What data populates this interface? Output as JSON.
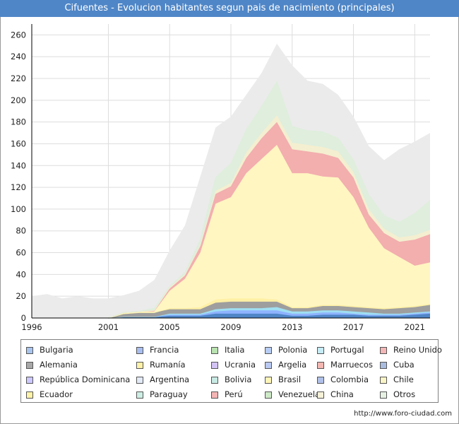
{
  "title": "Cifuentes - Evolucion habitantes segun pais de nacimiento (principales)",
  "footer": "http://www.foro-ciudad.com",
  "chart_data": {
    "type": "area",
    "stacked": true,
    "title": "Cifuentes - Evolucion habitantes segun pais de nacimiento (principales)",
    "xlim": [
      1996,
      2022
    ],
    "ylim": [
      0,
      270
    ],
    "x_ticks": [
      "1996",
      "2001",
      "2005",
      "2009",
      "2013",
      "2017",
      "2021"
    ],
    "y_ticks": [
      "0",
      "20",
      "40",
      "60",
      "80",
      "100",
      "120",
      "140",
      "160",
      "180",
      "200",
      "220",
      "240",
      "260"
    ],
    "grid": true,
    "legend_position": "bottom",
    "total_foreign": {
      "x": [
        1996,
        1997,
        1998,
        1999,
        2000,
        2001,
        2002,
        2003,
        2004,
        2005,
        2006,
        2007,
        2008,
        2009,
        2010,
        2011,
        2012,
        2013,
        2014,
        2015,
        2016,
        2017,
        2018,
        2019,
        2020,
        2021,
        2022
      ],
      "values": [
        20,
        22,
        18,
        20,
        18,
        18,
        21,
        25,
        35,
        62,
        85,
        130,
        175,
        185,
        205,
        225,
        252,
        232,
        218,
        215,
        205,
        185,
        158,
        145,
        155,
        162,
        170
      ],
      "color": "#ebebeb"
    },
    "x": [
      2001,
      2002,
      2003,
      2004,
      2005,
      2006,
      2007,
      2008,
      2009,
      2010,
      2011,
      2012,
      2013,
      2014,
      2015,
      2016,
      2017,
      2018,
      2019,
      2020,
      2021,
      2022
    ],
    "series": [
      {
        "name": "Bulgaria",
        "color": "#4f86c7",
        "values": [
          0,
          1,
          1,
          1,
          2,
          2,
          2,
          4,
          4,
          4,
          4,
          4,
          2,
          2,
          3,
          3,
          3,
          2,
          2,
          2,
          3,
          4
        ]
      },
      {
        "name": "Francia",
        "color": "#a9bef0",
        "values": [
          0,
          0,
          0,
          0,
          0,
          0,
          0,
          0,
          0,
          0,
          0,
          0,
          0,
          0,
          0,
          0,
          0,
          0,
          0,
          0,
          0,
          0
        ]
      },
      {
        "name": "Italia",
        "color": "#a6dba0",
        "values": [
          0,
          0,
          0,
          0,
          0,
          0,
          0,
          0,
          0,
          0,
          0,
          0,
          0,
          0,
          0,
          0,
          0,
          0,
          0,
          0,
          0,
          0
        ]
      },
      {
        "name": "Polonia",
        "color": "#8fb3ff",
        "values": [
          0,
          0,
          0,
          0,
          1,
          1,
          1,
          2,
          3,
          3,
          3,
          3,
          2,
          2,
          2,
          2,
          1,
          1,
          1,
          1,
          1,
          1
        ]
      },
      {
        "name": "Portugal",
        "color": "#9fdff2",
        "values": [
          0,
          0,
          0,
          0,
          1,
          1,
          1,
          2,
          2,
          2,
          2,
          3,
          2,
          2,
          2,
          2,
          2,
          2,
          1,
          1,
          1,
          1
        ]
      },
      {
        "name": "Reino Unido",
        "color": "#f2a5a5",
        "values": [
          0,
          0,
          0,
          0,
          0,
          0,
          0,
          0,
          0,
          0,
          0,
          0,
          0,
          0,
          0,
          0,
          0,
          0,
          0,
          0,
          0,
          0
        ]
      },
      {
        "name": "Alemania",
        "color": "#9e9e9e",
        "values": [
          0,
          3,
          4,
          4,
          4,
          4,
          4,
          6,
          6,
          6,
          6,
          5,
          3,
          3,
          4,
          4,
          4,
          4,
          4,
          5,
          5,
          6
        ]
      },
      {
        "name": "Rumanía",
        "color": "#fff0a5",
        "values": [
          0,
          0,
          0,
          0,
          1,
          1,
          2,
          3,
          3,
          3,
          3,
          2,
          1,
          1,
          1,
          1,
          1,
          1,
          1,
          1,
          1,
          1
        ]
      },
      {
        "name": "Ucrania",
        "color": "#c9b5f2",
        "values": [
          0,
          0,
          0,
          0,
          0,
          0,
          0,
          0,
          0,
          0,
          0,
          0,
          0,
          0,
          0,
          0,
          0,
          0,
          0,
          0,
          0,
          0
        ]
      },
      {
        "name": "Argelia",
        "color": "#b7c7f2",
        "values": [
          0,
          0,
          0,
          0,
          0,
          0,
          0,
          0,
          0,
          0,
          0,
          0,
          0,
          0,
          0,
          0,
          0,
          0,
          0,
          0,
          0,
          0
        ]
      },
      {
        "name": "Marruecos",
        "color": "#f2b0aa",
        "values": [
          0,
          0,
          0,
          0,
          0,
          0,
          0,
          0,
          0,
          0,
          0,
          0,
          0,
          0,
          0,
          0,
          0,
          0,
          0,
          0,
          0,
          0
        ]
      },
      {
        "name": "Cuba",
        "color": "#9fb2d9",
        "values": [
          0,
          0,
          0,
          0,
          0,
          0,
          0,
          0,
          0,
          0,
          0,
          0,
          0,
          0,
          0,
          0,
          0,
          0,
          0,
          0,
          0,
          0
        ]
      },
      {
        "name": "República Dominicana",
        "color": "#c7c7ff",
        "values": [
          0,
          0,
          0,
          0,
          0,
          0,
          0,
          0,
          0,
          0,
          0,
          0,
          0,
          0,
          0,
          0,
          0,
          0,
          0,
          0,
          0,
          0
        ]
      },
      {
        "name": "Argentina",
        "color": "#dfe7f5",
        "values": [
          0,
          0,
          0,
          0,
          0,
          0,
          0,
          0,
          0,
          0,
          0,
          0,
          0,
          0,
          0,
          0,
          0,
          0,
          0,
          0,
          0,
          0
        ]
      },
      {
        "name": "Bolivia",
        "color": "#bfe5e0",
        "values": [
          0,
          0,
          0,
          0,
          0,
          0,
          0,
          0,
          0,
          0,
          0,
          0,
          0,
          0,
          0,
          0,
          0,
          0,
          0,
          0,
          0,
          0
        ]
      },
      {
        "name": "Brasil",
        "color": "#fff6c2",
        "values": [
          0,
          1,
          1,
          1,
          16,
          27,
          50,
          88,
          93,
          115,
          128,
          142,
          123,
          123,
          118,
          117,
          100,
          73,
          55,
          46,
          37,
          38
        ]
      },
      {
        "name": "Colombia",
        "color": "#aabbe6",
        "values": [
          0,
          0,
          0,
          0,
          0,
          0,
          0,
          0,
          0,
          0,
          0,
          0,
          0,
          0,
          0,
          0,
          0,
          0,
          0,
          0,
          0,
          0
        ]
      },
      {
        "name": "Chile",
        "color": "#f8f2b8",
        "values": [
          0,
          0,
          0,
          0,
          0,
          0,
          0,
          0,
          0,
          0,
          0,
          0,
          0,
          0,
          0,
          0,
          0,
          0,
          0,
          0,
          0,
          0
        ]
      },
      {
        "name": "Ecuador",
        "color": "#fff2a0",
        "values": [
          0,
          0,
          0,
          0,
          0,
          0,
          0,
          0,
          0,
          0,
          0,
          0,
          0,
          0,
          0,
          0,
          0,
          0,
          0,
          0,
          0,
          0
        ]
      },
      {
        "name": "Paraguay",
        "color": "#c7eadf",
        "values": [
          0,
          0,
          0,
          0,
          0,
          0,
          0,
          0,
          0,
          0,
          0,
          0,
          0,
          0,
          0,
          0,
          0,
          0,
          0,
          0,
          0,
          0
        ]
      },
      {
        "name": "Perú",
        "color": "#f3aeae",
        "values": [
          0,
          0,
          0,
          1,
          2,
          3,
          6,
          9,
          10,
          14,
          19,
          21,
          22,
          20,
          21,
          18,
          18,
          12,
          14,
          14,
          24,
          26
        ]
      },
      {
        "name": "Venezuela",
        "color": "#c5e5bd",
        "values": [
          0,
          0,
          0,
          0,
          0,
          0,
          0,
          0,
          0,
          0,
          0,
          0,
          0,
          0,
          0,
          0,
          0,
          0,
          0,
          0,
          0,
          0
        ]
      },
      {
        "name": "China",
        "color": "#f4efd0",
        "values": [
          0,
          0,
          0,
          0,
          1,
          1,
          1,
          3,
          3,
          5,
          5,
          6,
          6,
          6,
          6,
          6,
          5,
          5,
          4,
          4,
          4,
          4
        ]
      },
      {
        "name": "Otros",
        "color": "#dfeedd",
        "values": [
          0,
          0,
          0,
          2,
          1,
          2,
          5,
          12,
          18,
          21,
          24,
          31,
          15,
          13,
          14,
          12,
          11,
          13,
          12,
          14,
          20,
          27
        ]
      }
    ]
  },
  "legend": {
    "items": [
      {
        "label": "Bulgaria",
        "color": "#a9c4ee"
      },
      {
        "label": "Francia",
        "color": "#a9bef0"
      },
      {
        "label": "Italia",
        "color": "#b9e3b0"
      },
      {
        "label": "Polonia",
        "color": "#b7cdf5"
      },
      {
        "label": "Portugal",
        "color": "#c6ecf7"
      },
      {
        "label": "Reino Unido",
        "color": "#f4b7b7"
      },
      {
        "label": "Alemania",
        "color": "#a8a8a8"
      },
      {
        "label": "Rumanía",
        "color": "#fff2a8"
      },
      {
        "label": "Ucrania",
        "color": "#d3c3f5"
      },
      {
        "label": "Argelia",
        "color": "#b9c9f2"
      },
      {
        "label": "Marruecos",
        "color": "#f4b8b2"
      },
      {
        "label": "Cuba",
        "color": "#a9bcdf"
      },
      {
        "label": "República Dominicana",
        "color": "#cdc8ff"
      },
      {
        "label": "Argentina",
        "color": "#e3eaf7"
      },
      {
        "label": "Bolivia",
        "color": "#c8eae4"
      },
      {
        "label": "Brasil",
        "color": "#fff5b8"
      },
      {
        "label": "Colombia",
        "color": "#b0c0e8"
      },
      {
        "label": "Chile",
        "color": "#faf5c6"
      },
      {
        "label": "Ecuador",
        "color": "#fff3a8"
      },
      {
        "label": "Paraguay",
        "color": "#cdeee4"
      },
      {
        "label": "Perú",
        "color": "#f4b4b4"
      },
      {
        "label": "Venezuela",
        "color": "#cde9c6"
      },
      {
        "label": "China",
        "color": "#f6f2d8"
      },
      {
        "label": "Otros",
        "color": "#e6f1e4"
      }
    ]
  }
}
